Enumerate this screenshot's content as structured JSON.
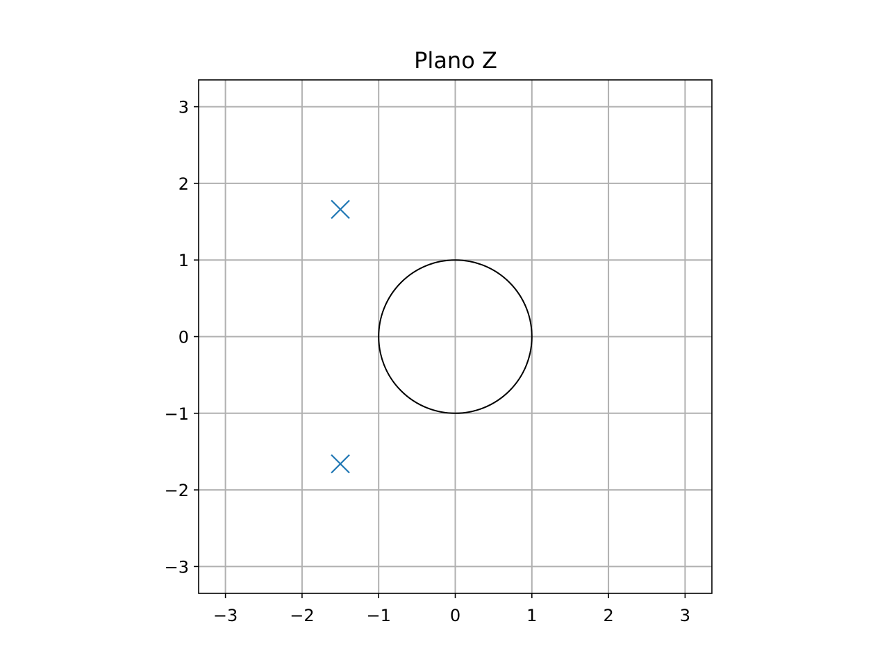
{
  "chart_data": {
    "type": "scatter",
    "title": "Plano Z",
    "xlabel": "",
    "ylabel": "",
    "xlim": [
      -3.35,
      3.35
    ],
    "ylim": [
      -3.35,
      3.35
    ],
    "grid": true,
    "legend": "none",
    "x_ticks": [
      {
        "value": -3,
        "label": "−3"
      },
      {
        "value": -2,
        "label": "−2"
      },
      {
        "value": -1,
        "label": "−1"
      },
      {
        "value": 0,
        "label": "0"
      },
      {
        "value": 1,
        "label": "1"
      },
      {
        "value": 2,
        "label": "2"
      },
      {
        "value": 3,
        "label": "3"
      }
    ],
    "y_ticks": [
      {
        "value": -3,
        "label": "−3"
      },
      {
        "value": -2,
        "label": "−2"
      },
      {
        "value": -1,
        "label": "−1"
      },
      {
        "value": 0,
        "label": "0"
      },
      {
        "value": 1,
        "label": "1"
      },
      {
        "value": 2,
        "label": "2"
      },
      {
        "value": 3,
        "label": "3"
      }
    ],
    "series": [
      {
        "marker": "x",
        "color": "#1f77b4",
        "points": [
          {
            "x": -1.5,
            "y": 1.66
          },
          {
            "x": -1.5,
            "y": -1.66
          }
        ]
      }
    ],
    "reference_circle": {
      "cx": 0,
      "cy": 0,
      "r": 1,
      "color": "#000000"
    }
  }
}
